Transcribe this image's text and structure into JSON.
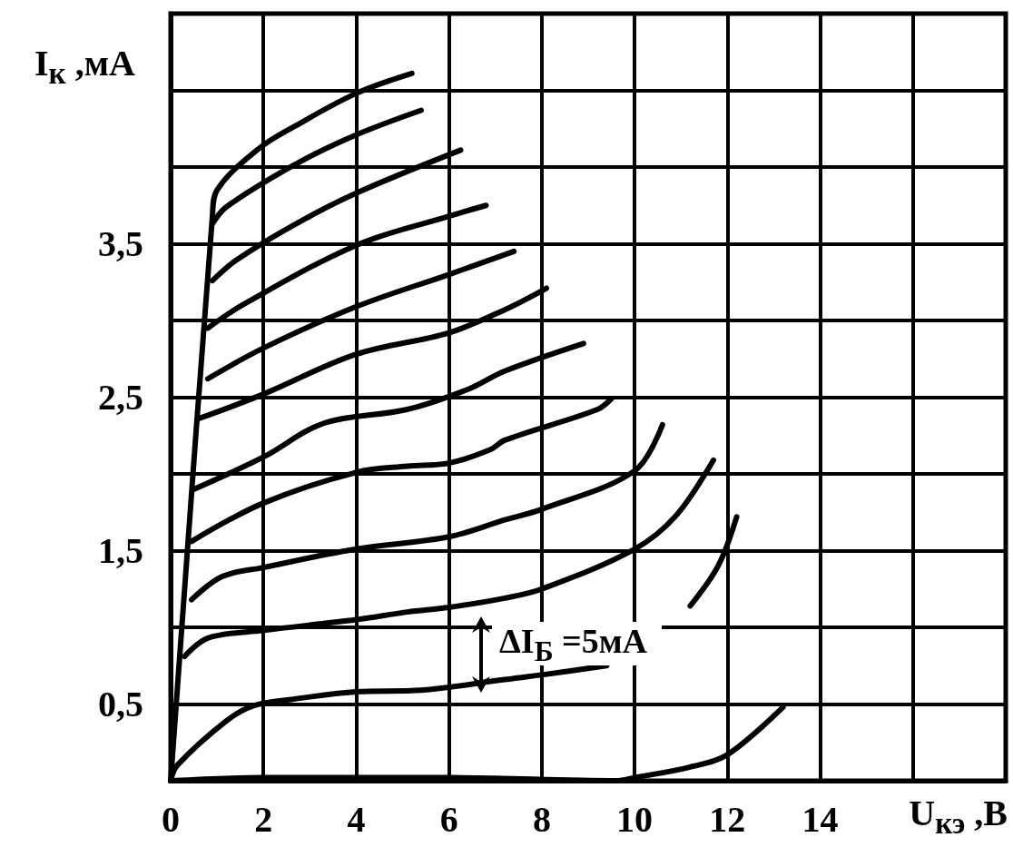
{
  "chart_data": {
    "type": "line",
    "xlabel": "U$_{кэ}$ ,В",
    "ylabel": "I$_{к}$ ,мА",
    "annotations": [
      "ΔI$_{Б}$ =5мА"
    ],
    "xlim": [
      0,
      18
    ],
    "xticks": [
      0,
      2,
      4,
      6,
      8,
      10,
      12,
      14,
      {
        "value": 16,
        "label": null
      },
      {
        "value": 18,
        "label": null
      }
    ],
    "ylim": [
      0,
      5
    ],
    "yticks": [
      {
        "value": 0,
        "label": null
      },
      {
        "value": 0.5,
        "label": "0,5"
      },
      {
        "value": 1,
        "label": null
      },
      {
        "value": 1.5,
        "label": "1,5"
      },
      {
        "value": 2,
        "label": null
      },
      {
        "value": 2.5,
        "label": "2,5"
      },
      {
        "value": 3,
        "label": null
      },
      {
        "value": 3.5,
        "label": "3,5"
      },
      {
        "value": 4,
        "label": null
      },
      {
        "value": 4.5,
        "label": null
      },
      {
        "value": 5,
        "label": null
      }
    ],
    "grid": true,
    "series": [
      {
        "color": "#000000",
        "x": [
          0,
          2,
          6,
          9.6,
          10,
          11.2,
          12,
          13.2
        ],
        "values": [
          0,
          0.02,
          0.02,
          0,
          0.02,
          0.09,
          0.17,
          0.48
        ]
      },
      {
        "color": "#000000",
        "x": [
          0,
          0.14,
          1.2,
          1.8,
          2.6,
          4,
          5.4,
          7.2,
          8,
          9.4,
          10.2,
          11.2,
          11.8,
          12.2
        ],
        "values": [
          0,
          0.1,
          0.39,
          0.49,
          0.53,
          0.58,
          0.59,
          0.66,
          0.69,
          0.75,
          null,
          1.14,
          1.4,
          1.72
        ]
      },
      {
        "color": "#000000",
        "x": [
          0.3,
          0.8,
          2,
          4,
          5.1,
          6,
          7.2,
          8,
          10,
          10.9,
          11.7
        ],
        "values": [
          0.81,
          0.93,
          0.98,
          1.05,
          1.1,
          1.13,
          1.19,
          1.25,
          1.51,
          1.73,
          2.09
        ]
      },
      {
        "color": "#000000",
        "x": [
          0.45,
          1.1,
          2,
          4,
          6,
          7.2,
          8,
          10,
          10.6
        ],
        "values": [
          1.18,
          1.33,
          1.39,
          1.51,
          1.59,
          1.7,
          1.77,
          2.02,
          2.32
        ]
      },
      {
        "color": "#000000",
        "x": [
          0.45,
          2,
          4,
          5.1,
          6,
          6.9,
          7.2,
          9.2,
          9.5
        ],
        "values": [
          1.56,
          1.81,
          2.01,
          2.05,
          2.07,
          2.16,
          2.22,
          2.42,
          2.49
        ]
      },
      {
        "color": "#000000",
        "x": [
          0.5,
          2,
          3.3,
          5.1,
          6.4,
          7.2,
          8.9
        ],
        "values": [
          1.9,
          2.11,
          2.33,
          2.42,
          2.55,
          2.67,
          2.85
        ]
      },
      {
        "color": "#000000",
        "x": [
          0.6,
          2,
          4,
          6,
          7.2,
          8.1
        ],
        "values": [
          2.36,
          2.52,
          2.78,
          2.92,
          3.07,
          3.21
        ]
      },
      {
        "color": "#000000",
        "x": [
          0.8,
          2,
          4,
          6,
          7.4
        ],
        "values": [
          2.62,
          2.82,
          3.09,
          3.3,
          3.45
        ]
      },
      {
        "color": "#000000",
        "x": [
          0.8,
          1.6,
          4,
          6,
          6.8
        ],
        "values": [
          2.95,
          3.11,
          3.49,
          3.68,
          3.75
        ]
      },
      {
        "color": "#000000",
        "x": [
          0.9,
          1.4,
          2.7,
          4,
          6.25
        ],
        "values": [
          3.26,
          3.39,
          3.63,
          3.83,
          4.11
        ]
      },
      {
        "color": "#000000",
        "x": [
          0.9,
          1.2,
          2.7,
          4,
          5.4
        ],
        "values": [
          3.63,
          3.74,
          4.02,
          4.21,
          4.37
        ]
      },
      {
        "color": "#000000",
        "x": [
          0,
          0.9,
          1.0,
          1.9,
          2.7,
          4,
          5.2
        ],
        "values": [
          0,
          3.68,
          3.85,
          4.12,
          4.27,
          4.48,
          4.61
        ]
      }
    ]
  }
}
